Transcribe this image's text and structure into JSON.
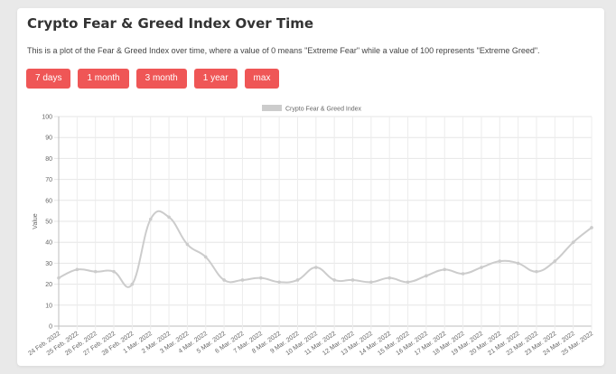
{
  "title": "Crypto Fear & Greed Index Over Time",
  "description": "This is a plot of the Fear & Greed Index over time, where a value of 0 means \"Extreme Fear\" while a value of 100 represents \"Extreme Greed\".",
  "buttons": [
    "7 days",
    "1 month",
    "3 month",
    "1 year",
    "max"
  ],
  "accent_color": "#ef5656",
  "chart_data": {
    "type": "line",
    "categories": [
      "24 Feb. 2022",
      "25 Feb. 2022",
      "26 Feb. 2022",
      "27 Feb. 2022",
      "28 Feb. 2022",
      "1 Mar. 2022",
      "2 Mar. 2022",
      "3 Mar. 2022",
      "4 Mar. 2022",
      "5 Mar. 2022",
      "6 Mar. 2022",
      "7 Mar. 2022",
      "8 Mar. 2022",
      "9 Mar. 2022",
      "10 Mar. 2022",
      "11 Mar. 2022",
      "12 Mar. 2022",
      "13 Mar. 2022",
      "14 Mar. 2022",
      "15 Mar. 2022",
      "16 Mar. 2022",
      "17 Mar. 2022",
      "18 Mar. 2022",
      "19 Mar. 2022",
      "20 Mar. 2022",
      "21 Mar. 2022",
      "22 Mar. 2022",
      "23 Mar. 2022",
      "24 Mar. 2022",
      "25 Mar. 2022"
    ],
    "series": [
      {
        "name": "Crypto Fear & Greed Index",
        "values": [
          23,
          27,
          26,
          26,
          20,
          51,
          52,
          39,
          33,
          22,
          22,
          23,
          21,
          22,
          28,
          22,
          22,
          21,
          23,
          21,
          24,
          27,
          25,
          28,
          31,
          30,
          26,
          31,
          40,
          47
        ],
        "color": "#cccccc"
      }
    ],
    "ylabel": "Value",
    "xlabel": "",
    "ylim": [
      0,
      100
    ],
    "yticks": [
      0,
      10,
      20,
      30,
      40,
      50,
      60,
      70,
      80,
      90,
      100
    ],
    "grid": true,
    "legend": "top-center"
  }
}
